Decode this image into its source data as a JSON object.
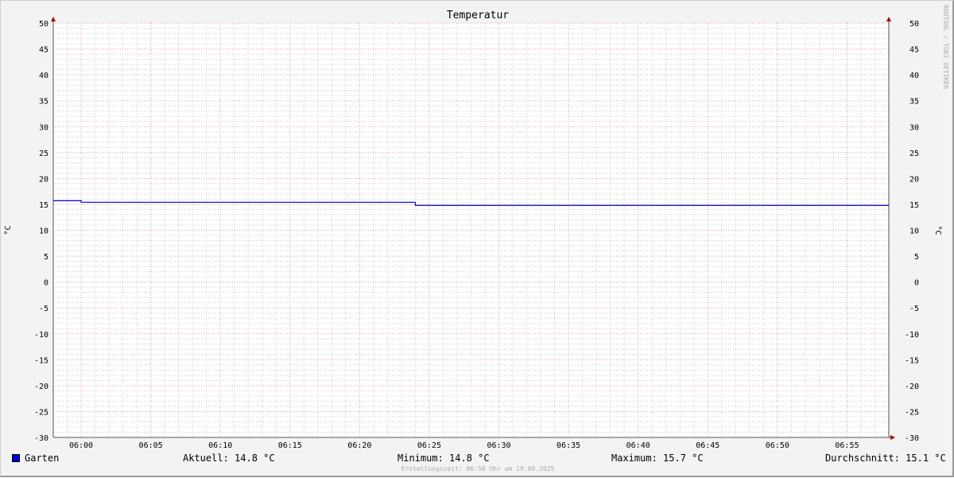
{
  "chart_data": {
    "type": "line",
    "title": "Temperatur",
    "ylabel": "°C",
    "ylabel_right": "°C",
    "ylim": [
      -30,
      50
    ],
    "yticks": [
      50,
      45,
      40,
      35,
      30,
      25,
      20,
      15,
      10,
      5,
      0,
      -5,
      -10,
      -15,
      -20,
      -25,
      -30
    ],
    "xlim": [
      "05:58",
      "06:58"
    ],
    "xticks": [
      "06:00",
      "06:05",
      "06:10",
      "06:15",
      "06:20",
      "06:25",
      "06:30",
      "06:35",
      "06:40",
      "06:45",
      "06:50",
      "06:55"
    ],
    "grid": true,
    "series": [
      {
        "name": "Garten",
        "color": "#0000cc",
        "x": [
          "05:58",
          "06:00",
          "06:00",
          "06:24",
          "06:24",
          "06:58"
        ],
        "y": [
          15.7,
          15.7,
          15.4,
          15.4,
          14.8,
          14.8
        ]
      }
    ]
  },
  "legend": {
    "series": "Garten",
    "current": "Aktuell: 14.8 °C",
    "minimum": "Minimum: 14.8 °C",
    "maximum": "Maximum: 15.7 °C",
    "average": "Durchschnitt: 15.1 °C"
  },
  "footer": "Erstellungszeit: 06:58 Uhr am 19.09.2025",
  "watermark": "RRDTOOL / TOBI OETIKER"
}
